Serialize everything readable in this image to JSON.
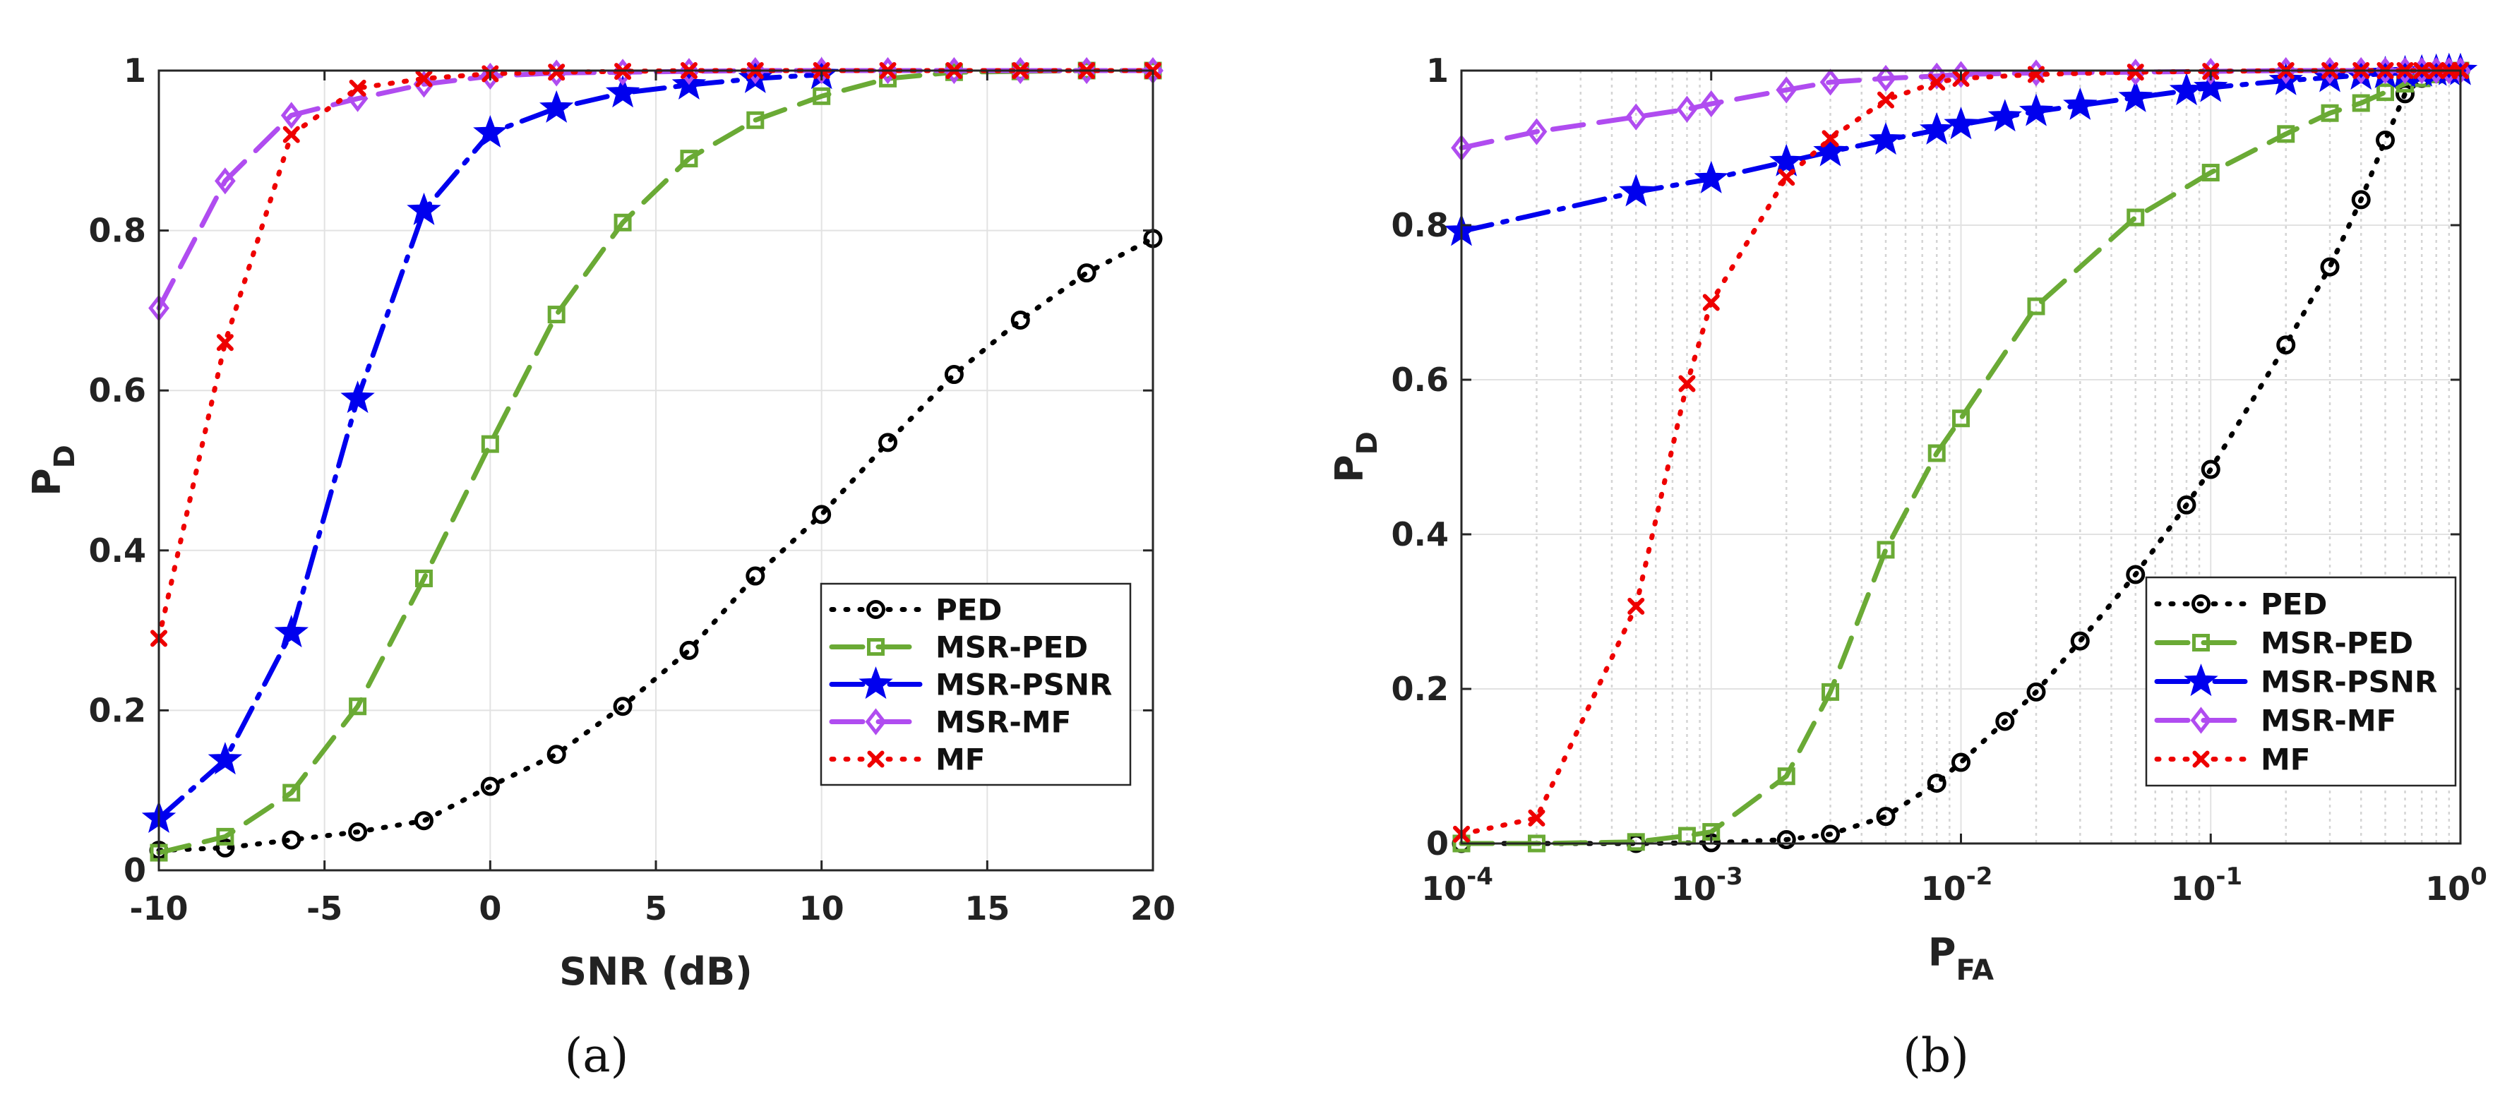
{
  "chart_data": [
    {
      "type": "line",
      "panel_label": "(a)",
      "xlabel": "SNR (dB)",
      "ylabel": {
        "main": "P",
        "sub": "D"
      },
      "xscale": "linear",
      "xlim": [
        -10,
        20
      ],
      "ylim": [
        0,
        1
      ],
      "xticks": [
        -10,
        -5,
        0,
        5,
        10,
        15,
        20
      ],
      "xtick_labels": [
        "-10",
        "-5",
        "0",
        "5",
        "10",
        "15",
        "20"
      ],
      "yticks": [
        0,
        0.2,
        0.4,
        0.6,
        0.8,
        1
      ],
      "ytick_labels": [
        "0",
        "0.2",
        "0.4",
        "0.6",
        "0.8",
        "1"
      ],
      "grid": true,
      "legend_position": "bottom-right",
      "series": [
        {
          "name": "PED",
          "color": "#000000",
          "dash": "dot",
          "marker": "circle",
          "x": [
            -10,
            -8,
            -6,
            -4,
            -2,
            0,
            2,
            4,
            6,
            8,
            10,
            12,
            14,
            16,
            18,
            20
          ],
          "y": [
            0.025,
            0.028,
            0.038,
            0.048,
            0.062,
            0.105,
            0.145,
            0.205,
            0.275,
            0.368,
            0.445,
            0.535,
            0.62,
            0.688,
            0.747,
            0.79
          ]
        },
        {
          "name": "MSR-PED",
          "color": "#6aaa35",
          "dash": "dash",
          "marker": "square",
          "x": [
            -10,
            -8,
            -6,
            -4,
            -2,
            0,
            2,
            4,
            6,
            8,
            10,
            12,
            14,
            16,
            18,
            20
          ],
          "y": [
            0.022,
            0.042,
            0.097,
            0.205,
            0.365,
            0.533,
            0.695,
            0.81,
            0.89,
            0.938,
            0.968,
            0.99,
            0.998,
            0.999,
            1.0,
            1.0
          ]
        },
        {
          "name": "MSR-PSNR",
          "color": "#0000ee",
          "dash": "dashdot",
          "marker": "star",
          "x": [
            -10,
            -8,
            -6,
            -4,
            -2,
            0,
            2,
            4,
            6,
            8,
            10
          ],
          "y": [
            0.065,
            0.138,
            0.297,
            0.59,
            0.825,
            0.922,
            0.953,
            0.972,
            0.982,
            0.99,
            0.995
          ]
        },
        {
          "name": "MSR-MF",
          "color": "#b04cf0",
          "dash": "dash",
          "marker": "diamond",
          "x": [
            -10,
            -8,
            -6,
            -4,
            -2,
            0,
            2,
            4,
            6,
            8,
            10,
            12,
            14,
            16,
            18,
            20
          ],
          "y": [
            0.703,
            0.862,
            0.944,
            0.965,
            0.983,
            0.993,
            0.997,
            0.998,
            0.999,
            1.0,
            1.0,
            1.0,
            1.0,
            1.0,
            1.0,
            1.0
          ]
        },
        {
          "name": "MF",
          "color": "#ee0000",
          "dash": "dot",
          "marker": "x",
          "x": [
            -10,
            -8,
            -6,
            -4,
            -2,
            0,
            2,
            4,
            6,
            8,
            10,
            12,
            14,
            16,
            18,
            20
          ],
          "y": [
            0.29,
            0.66,
            0.92,
            0.978,
            0.99,
            0.996,
            0.998,
            0.999,
            1.0,
            1.0,
            1.0,
            1.0,
            1.0,
            1.0,
            1.0,
            1.0
          ]
        }
      ]
    },
    {
      "type": "line",
      "panel_label": "(b)",
      "xlabel": {
        "main": "P",
        "sub": "FA"
      },
      "ylabel": {
        "main": "P",
        "sub": "D"
      },
      "xscale": "log",
      "xlim": [
        0.0001,
        1
      ],
      "ylim": [
        0,
        1
      ],
      "xticks": [
        0.0001,
        0.001,
        0.01,
        0.1,
        1
      ],
      "xtick_labels": [
        {
          "base": "10",
          "exp": "-4"
        },
        {
          "base": "10",
          "exp": "-3"
        },
        {
          "base": "10",
          "exp": "-2"
        },
        {
          "base": "10",
          "exp": "-1"
        },
        {
          "base": "10",
          "exp": "0"
        }
      ],
      "yticks": [
        0,
        0.2,
        0.4,
        0.6,
        0.8,
        1
      ],
      "ytick_labels": [
        "0",
        "0.2",
        "0.4",
        "0.6",
        "0.8",
        "1"
      ],
      "grid": true,
      "legend_position": "bottom-right",
      "series": [
        {
          "name": "PED",
          "color": "#000000",
          "dash": "dot",
          "marker": "circle",
          "x": [
            0.0001,
            0.0005,
            0.001,
            0.002,
            0.003,
            0.005,
            0.008,
            0.01,
            0.015,
            0.02,
            0.03,
            0.05,
            0.08,
            0.1,
            0.2,
            0.3,
            0.4,
            0.5,
            0.6,
            0.7,
            0.8,
            0.9,
            1.0
          ],
          "y": [
            0.0,
            0.0,
            0.001,
            0.005,
            0.012,
            0.035,
            0.078,
            0.105,
            0.158,
            0.196,
            0.262,
            0.348,
            0.438,
            0.484,
            0.645,
            0.746,
            0.833,
            0.91,
            0.97,
            0.99,
            0.996,
            0.999,
            1.0
          ]
        },
        {
          "name": "MSR-PED",
          "color": "#6aaa35",
          "dash": "dash",
          "marker": "square",
          "x": [
            0.0001,
            0.0002,
            0.0005,
            0.0008,
            0.001,
            0.002,
            0.003,
            0.005,
            0.008,
            0.01,
            0.02,
            0.05,
            0.1,
            0.2,
            0.3,
            0.4,
            0.5,
            0.6,
            0.7,
            0.8,
            0.9,
            1.0
          ],
          "y": [
            0.0,
            0.0,
            0.002,
            0.01,
            0.015,
            0.087,
            0.196,
            0.38,
            0.505,
            0.55,
            0.695,
            0.81,
            0.868,
            0.918,
            0.945,
            0.958,
            0.972,
            0.983,
            0.99,
            0.995,
            0.998,
            1.0
          ]
        },
        {
          "name": "MSR-PSNR",
          "color": "#0000ee",
          "dash": "dashdot",
          "marker": "star",
          "x": [
            0.0001,
            0.0005,
            0.001,
            0.002,
            0.003,
            0.005,
            0.008,
            0.01,
            0.015,
            0.02,
            0.03,
            0.05,
            0.08,
            0.1,
            0.2,
            0.3,
            0.4,
            0.5,
            0.6,
            0.7,
            0.8,
            0.9,
            1.0
          ],
          "y": [
            0.792,
            0.843,
            0.86,
            0.882,
            0.895,
            0.91,
            0.923,
            0.93,
            0.94,
            0.947,
            0.955,
            0.965,
            0.974,
            0.978,
            0.987,
            0.991,
            0.994,
            0.996,
            0.997,
            0.998,
            0.999,
            1.0,
            1.0
          ]
        },
        {
          "name": "MSR-MF",
          "color": "#b04cf0",
          "dash": "dash",
          "marker": "diamond",
          "x": [
            0.0001,
            0.0002,
            0.0005,
            0.0008,
            0.001,
            0.002,
            0.003,
            0.005,
            0.008,
            0.01,
            0.02,
            0.05,
            0.1,
            0.2,
            0.3,
            0.4,
            0.5,
            0.6,
            0.7,
            0.8,
            0.9,
            1.0
          ],
          "y": [
            0.9,
            0.921,
            0.94,
            0.95,
            0.957,
            0.975,
            0.985,
            0.99,
            0.993,
            0.995,
            0.997,
            0.998,
            0.999,
            1.0,
            1.0,
            1.0,
            1.0,
            1.0,
            1.0,
            1.0,
            1.0,
            1.0
          ]
        },
        {
          "name": "MF",
          "color": "#ee0000",
          "dash": "dot",
          "marker": "x",
          "x": [
            0.0001,
            0.0002,
            0.0005,
            0.0008,
            0.001,
            0.002,
            0.003,
            0.005,
            0.008,
            0.01,
            0.02,
            0.05,
            0.1,
            0.2,
            0.3,
            0.4,
            0.5,
            0.6,
            0.7,
            0.8,
            0.9,
            1.0
          ],
          "y": [
            0.012,
            0.033,
            0.307,
            0.595,
            0.7,
            0.862,
            0.912,
            0.962,
            0.985,
            0.99,
            0.995,
            0.998,
            0.999,
            1.0,
            1.0,
            1.0,
            1.0,
            1.0,
            1.0,
            1.0,
            1.0,
            1.0
          ]
        }
      ]
    }
  ]
}
